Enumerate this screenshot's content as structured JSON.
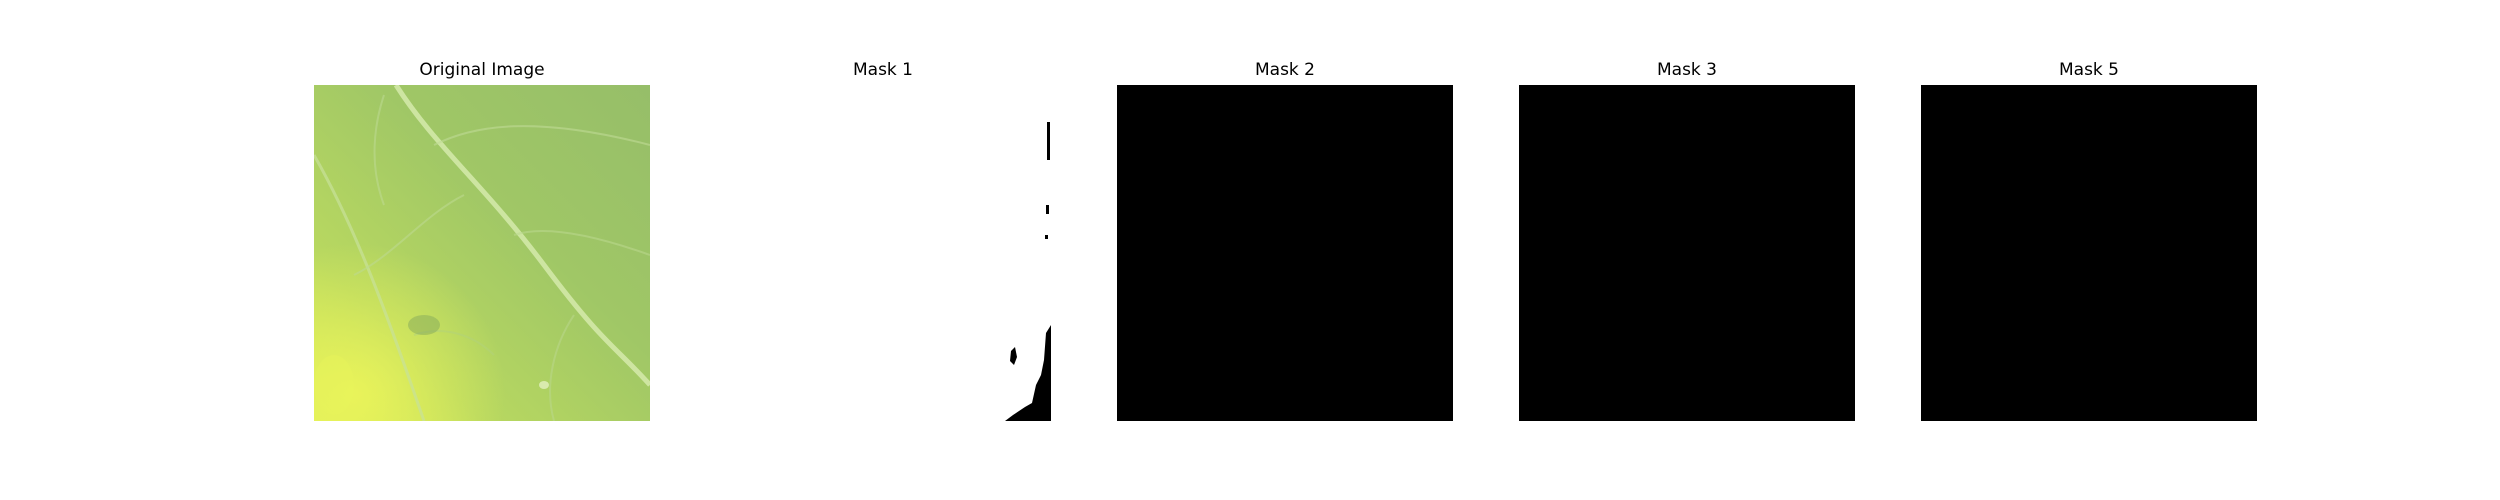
{
  "panels": [
    {
      "title": "Original Image",
      "kind": "leaf-photo"
    },
    {
      "title": "Mask 1",
      "kind": "mask-mostly-white"
    },
    {
      "title": "Mask 2",
      "kind": "mask-black"
    },
    {
      "title": "Mask 3",
      "kind": "mask-black"
    },
    {
      "title": "Mask 5",
      "kind": "mask-black"
    }
  ],
  "colors": {
    "background": "#ffffff",
    "mask_fill": "#000000",
    "leaf_base": "#9cc466",
    "leaf_highlight": "#d6ea5a"
  }
}
